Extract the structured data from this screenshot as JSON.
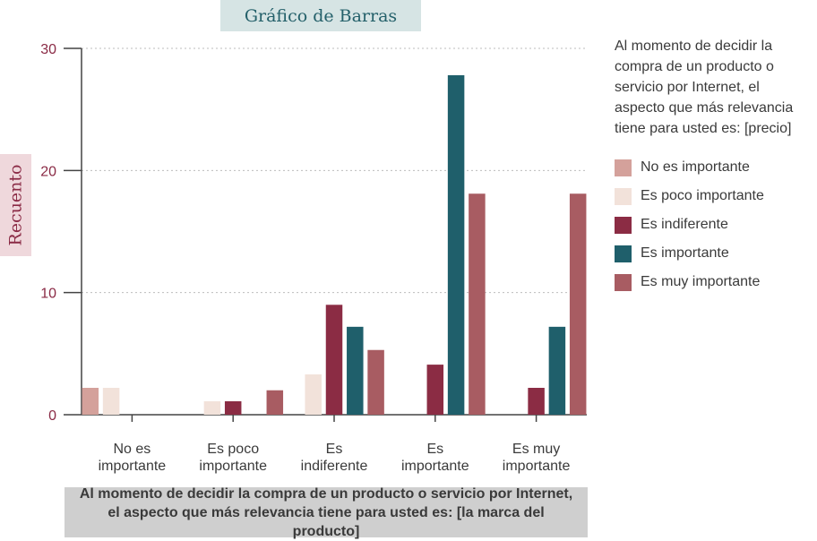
{
  "chart_data": {
    "type": "bar",
    "title": "Gráfico de Barras",
    "ylabel": "Recuento",
    "xlabel": "Al momento de decidir la compra de un producto o servicio por Internet, el aspecto que más relevancia tiene para usted es: [la marca del producto]",
    "legend_title": "Al momento de decidir la compra de un producto o servicio por Internet, el aspecto que más relevancia tiene para usted es: [precio]",
    "ylim": [
      0,
      30
    ],
    "yticks": [
      0,
      10,
      20,
      30
    ],
    "grid": true,
    "legend_position": "right",
    "categories": [
      [
        "No es",
        "importante"
      ],
      [
        "Es poco",
        "importante"
      ],
      [
        "Es",
        "indiferente"
      ],
      [
        "Es",
        "importante"
      ],
      [
        "Es muy",
        "importante"
      ]
    ],
    "series": [
      {
        "name": "No es importante",
        "color": "#d4a19b",
        "values": [
          2.2,
          0,
          0,
          0,
          0
        ]
      },
      {
        "name": "Es poco importante",
        "color": "#f2e2da",
        "values": [
          2.2,
          1.1,
          3.3,
          0,
          0
        ]
      },
      {
        "name": "Es indiferente",
        "color": "#8b2c44",
        "values": [
          0,
          1.1,
          9,
          4.1,
          2.2
        ]
      },
      {
        "name": "Es importante",
        "color": "#1f5f6b",
        "values": [
          0,
          0,
          7.2,
          27.8,
          7.2
        ]
      },
      {
        "name": "Es muy importante",
        "color": "#a85c62",
        "values": [
          0,
          2,
          5.3,
          18.1,
          18.1
        ]
      }
    ]
  }
}
